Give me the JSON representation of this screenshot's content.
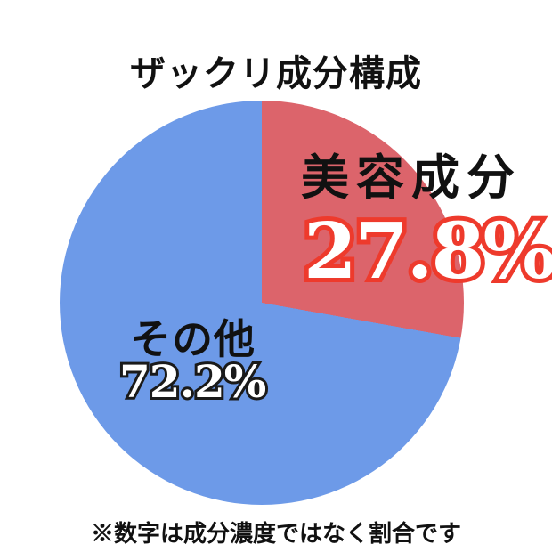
{
  "title": "ザックリ成分構成",
  "chart_data": {
    "type": "pie",
    "title": "ザックリ成分構成",
    "slices": [
      {
        "label": "美容成分",
        "value": 27.8,
        "display_value": "27.8%",
        "color": "#DC646B"
      },
      {
        "label": "その他",
        "value": 72.2,
        "display_value": "72.2%",
        "color": "#6D9AE8"
      }
    ],
    "start_angle_deg": 0,
    "direction": "clockwise",
    "legend": "none",
    "note": "※数字は成分濃度ではなく割合です"
  },
  "labels": {
    "beauty_name": "美容成分",
    "beauty_value": "27.8%",
    "other_name": "その他",
    "other_value": "72.2%"
  },
  "footnote": "※数字は成分濃度ではなく割合です",
  "colors": {
    "slice_red": "#DC646B",
    "slice_blue": "#6D9AE8",
    "num_red_outline": "#EE3A2C",
    "num_black_outline": "#1A1A1A",
    "text_black": "#111111",
    "background": "#FFFFFF"
  }
}
